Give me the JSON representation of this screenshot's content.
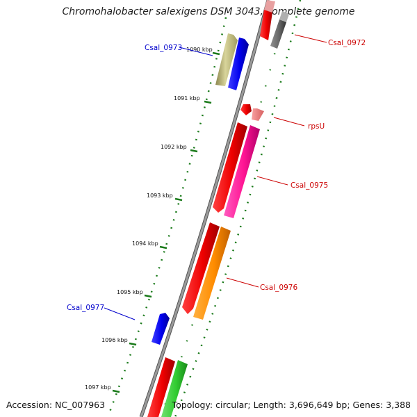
{
  "title": "Chromohalobacter salexigens DSM 3043, complete genome",
  "accession": "Accession: NC_007963",
  "summary": "Topology: circular; Length: 3,696,649 bp; Genes: 3,388",
  "colors": {
    "backbone": "#808080",
    "tick": "#1a7a1a",
    "forward_label": "#cc0000",
    "reverse_label": "#0000cc"
  },
  "position_ticks": [
    {
      "label": "1090 kbp"
    },
    {
      "label": "1091 kbp"
    },
    {
      "label": "1092 kbp"
    },
    {
      "label": "1093 kbp"
    },
    {
      "label": "1094 kbp"
    },
    {
      "label": "1095 kbp"
    },
    {
      "label": "1096 kbp"
    },
    {
      "label": "1097 kbp"
    }
  ],
  "gene_labels": [
    {
      "name": "Csal_0972",
      "strand": "forward"
    },
    {
      "name": "Csal_0973",
      "strand": "reverse"
    },
    {
      "name": "rpsU",
      "strand": "forward"
    },
    {
      "name": "Csal_0975",
      "strand": "forward"
    },
    {
      "name": "Csal_0976",
      "strand": "forward"
    },
    {
      "name": "Csal_0977",
      "strand": "reverse"
    }
  ]
}
